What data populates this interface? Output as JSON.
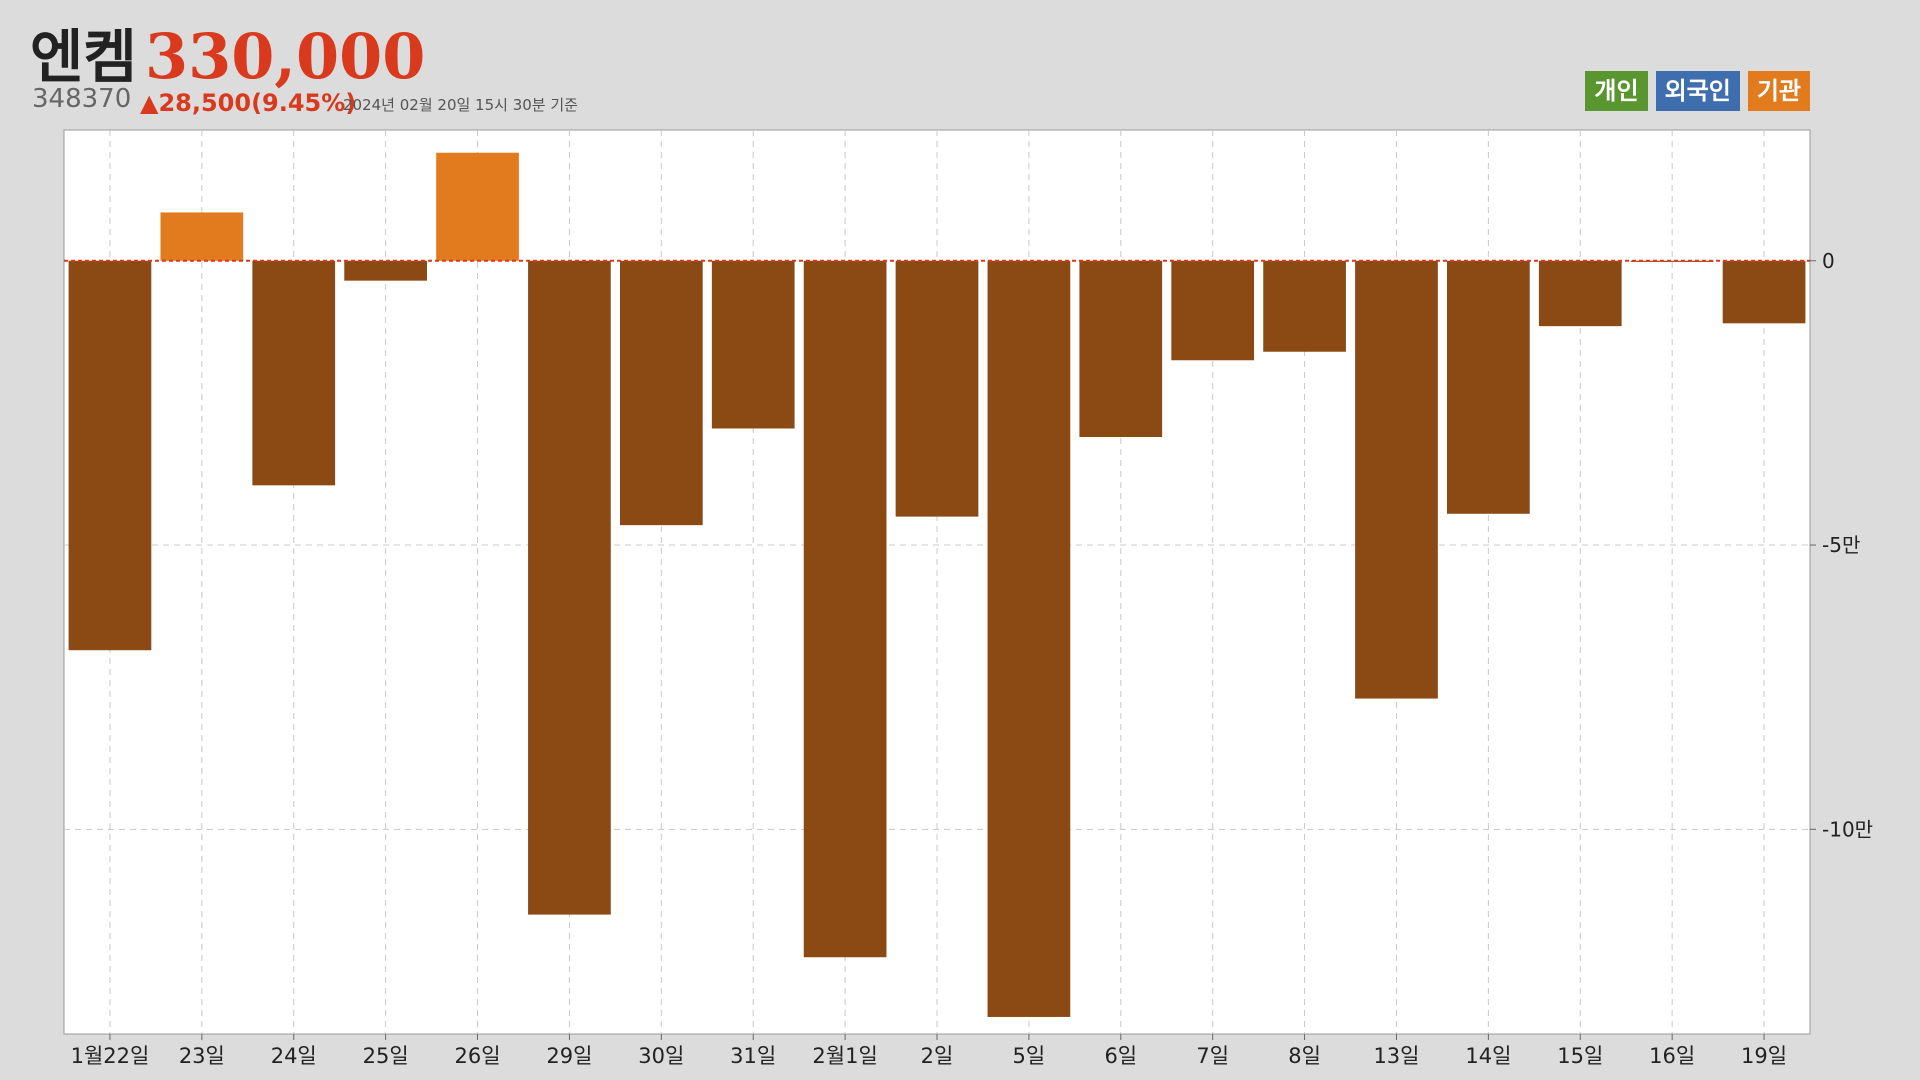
{
  "header": {
    "name": "엔켐",
    "price": "330,000",
    "code": "348370",
    "change": "▲28,500(9.45%)",
    "asof": "2024년 02월 20일 15시 30분 기준"
  },
  "legend": [
    {
      "label": "개인",
      "color": "#5a9630"
    },
    {
      "label": "외국인",
      "color": "#3f6eae"
    },
    {
      "label": "기관",
      "color": "#e27a1e"
    }
  ],
  "colors": {
    "positive": "#e27a1e",
    "negative": "#8b4914",
    "zero_line": "#d93a1e",
    "grid": "#c8c8c8",
    "plot_bg": "#ffffff"
  },
  "chart_data": {
    "type": "bar",
    "series": [
      {
        "name": "기관"
      }
    ],
    "categories": [
      "1월22일",
      "23일",
      "24일",
      "25일",
      "26일",
      "29일",
      "30일",
      "31일",
      "2월1일",
      "2일",
      "5일",
      "6일",
      "7일",
      "8일",
      "13일",
      "14일",
      "15일",
      "16일",
      "19일"
    ],
    "values": [
      -68500,
      8500,
      -39500,
      -3500,
      19000,
      -115000,
      -46500,
      -29500,
      -122500,
      -45000,
      -133000,
      -31000,
      -17500,
      -16000,
      -77000,
      -44500,
      -11500,
      -200,
      -11000
    ],
    "yticks": [
      0,
      -50000,
      -100000
    ],
    "ytick_labels": [
      "0",
      "-5만",
      "-10만"
    ],
    "ylim": [
      -136000,
      23000
    ],
    "grid": true,
    "y_axis_position": "right",
    "legend_position": "top-right"
  }
}
